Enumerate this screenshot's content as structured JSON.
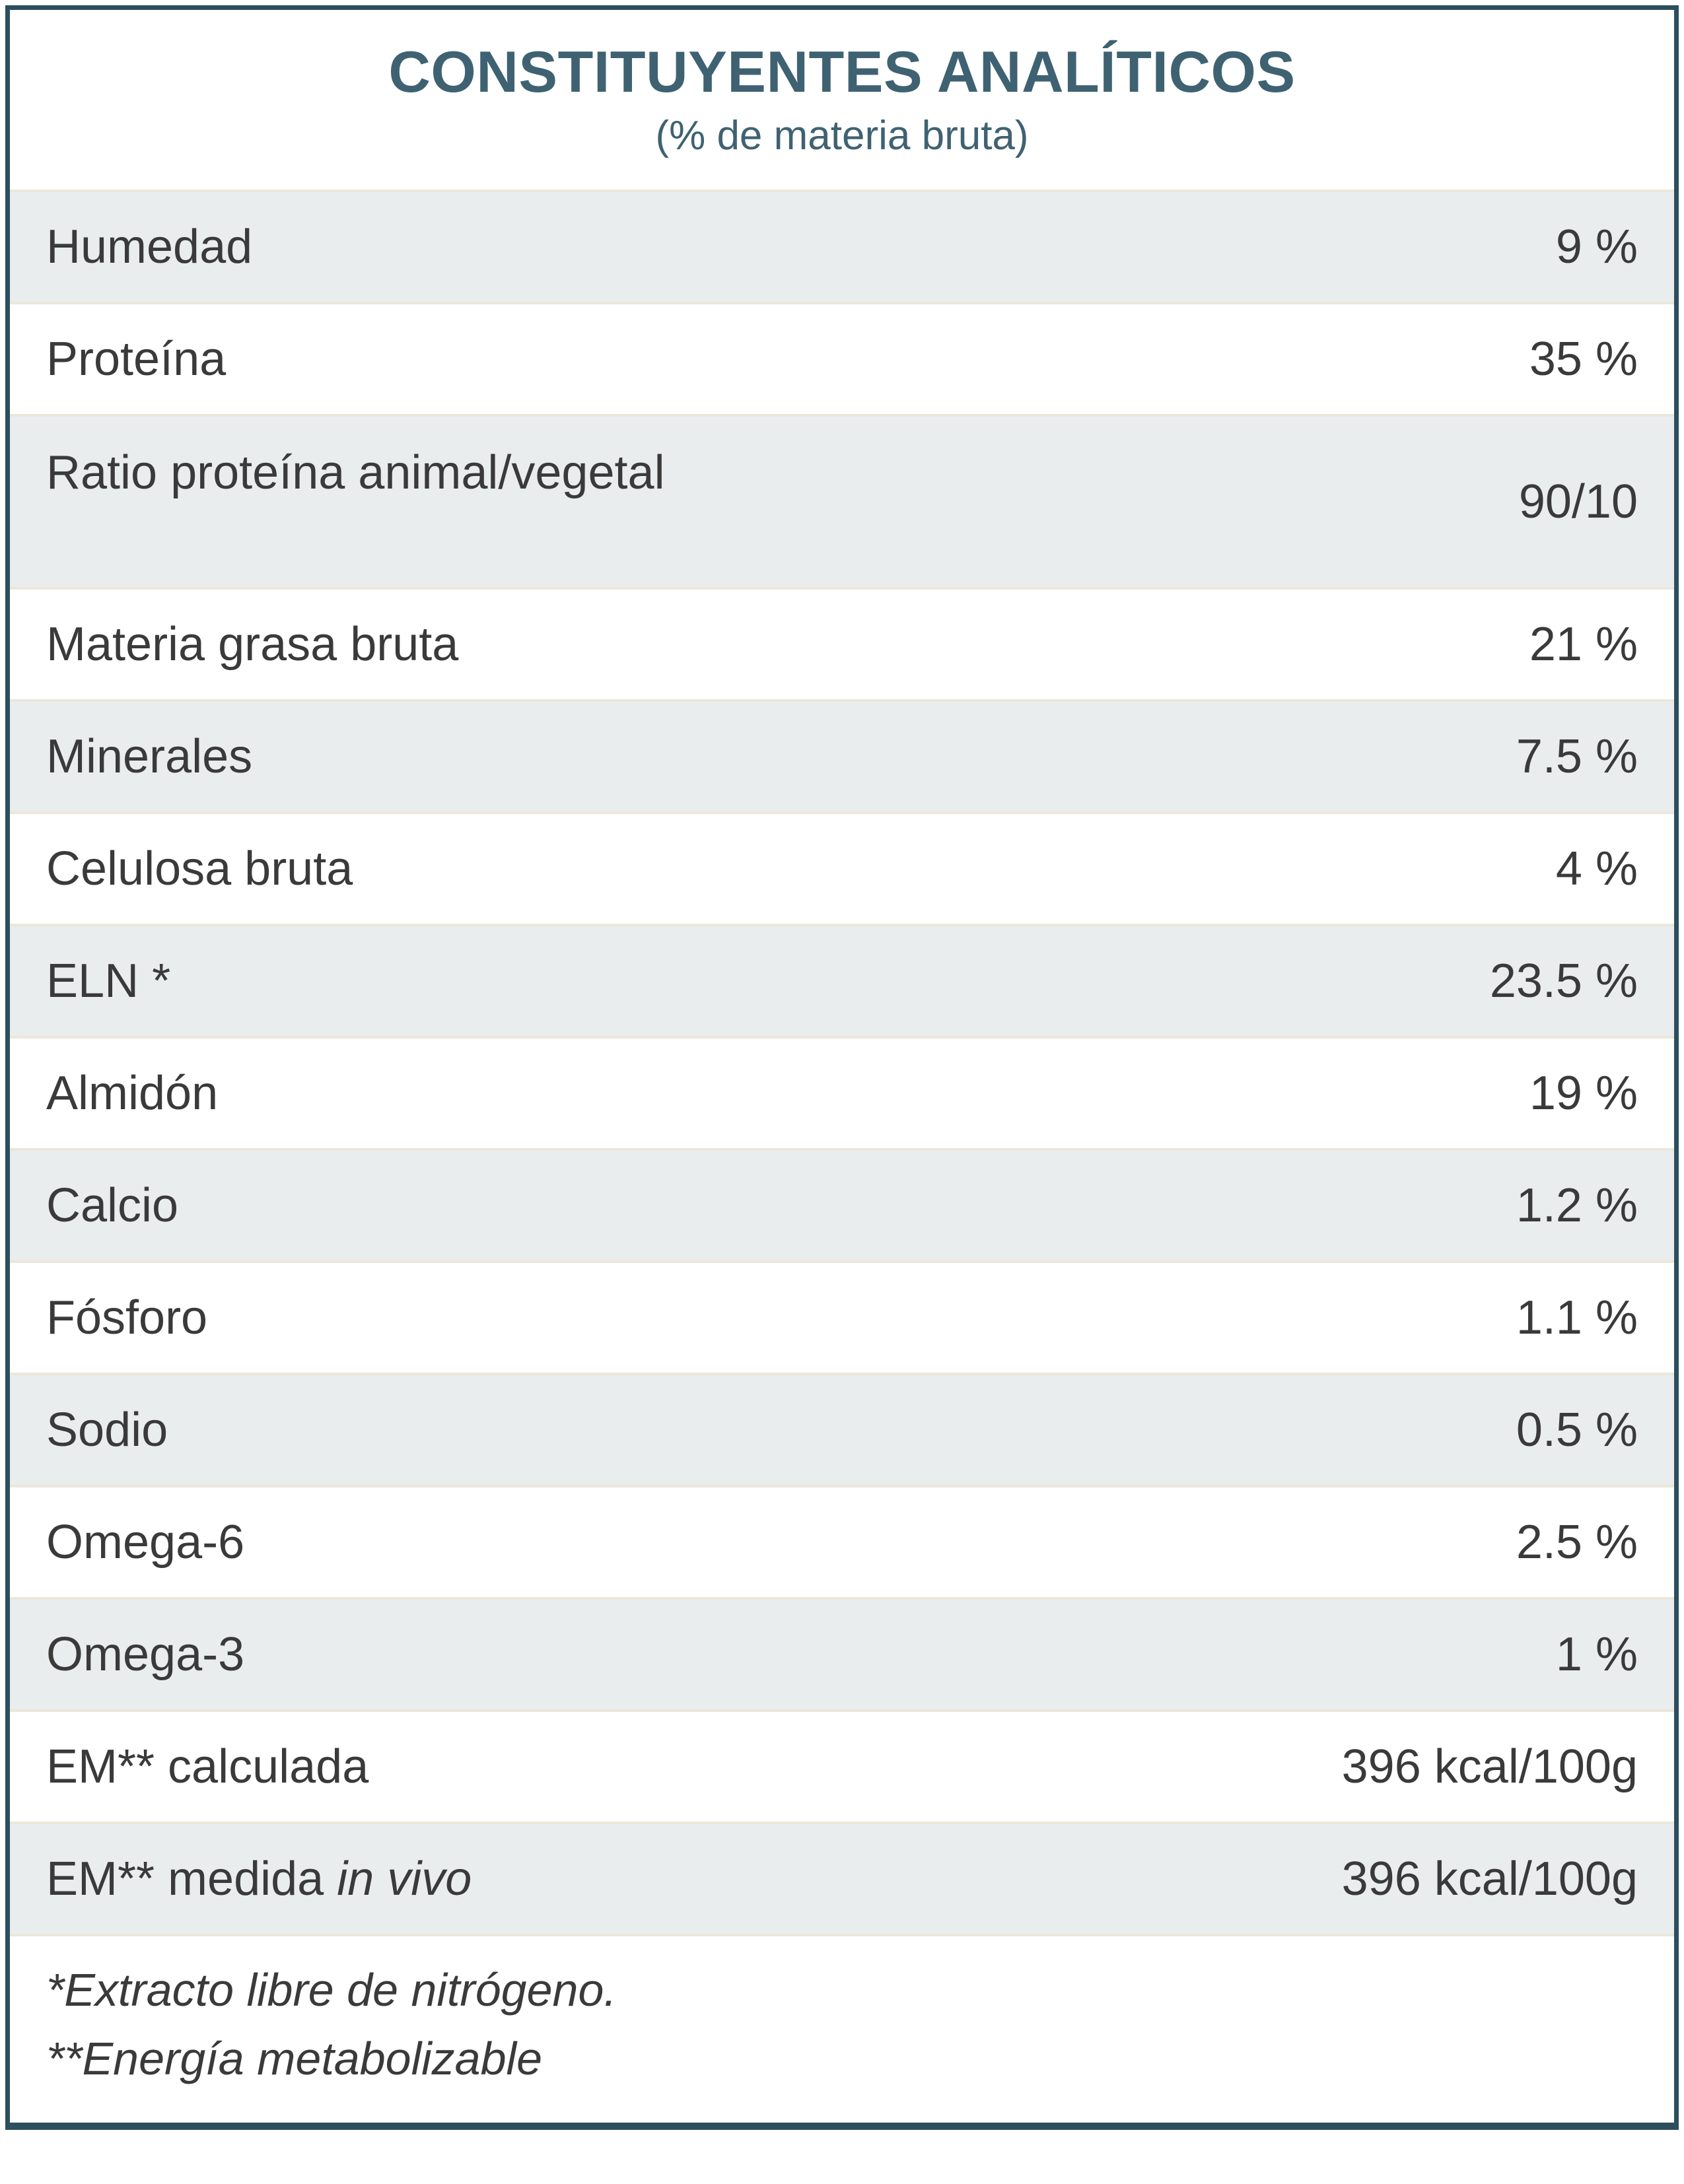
{
  "table": {
    "title": "CONSTITUYENTES ANALÍTICOS",
    "subtitle": "(% de materia bruta)",
    "rows": [
      {
        "label": "Humedad",
        "value": "9 %"
      },
      {
        "label": "Proteína",
        "value": "35 %"
      },
      {
        "label": "Ratio proteína animal/vegetal",
        "value": "90/10",
        "tall": true
      },
      {
        "label": "Materia grasa bruta",
        "value": "21 %"
      },
      {
        "label": "Minerales",
        "value": "7.5 %"
      },
      {
        "label": "Celulosa bruta",
        "value": "4 %"
      },
      {
        "label": "ELN *",
        "value": "23.5 %"
      },
      {
        "label": "Almidón",
        "value": "19 %"
      },
      {
        "label": "Calcio",
        "value": "1.2 %"
      },
      {
        "label": "Fósforo",
        "value": "1.1 %"
      },
      {
        "label": "Sodio",
        "value": "0.5 %"
      },
      {
        "label": "Omega-6",
        "value": "2.5 %"
      },
      {
        "label": "Omega-3",
        "value": "1 %"
      },
      {
        "label": "EM** calculada",
        "value": "396 kcal/100g"
      },
      {
        "label": "EM** medida in vivo",
        "italic_part": "in vivo",
        "value": "396 kcal/100g"
      }
    ],
    "footnotes": [
      "*Extracto libre de nitrógeno.",
      "**Energía metabolizable"
    ],
    "colors": {
      "border_teal": "#2b4f5e",
      "title_teal": "#3f6272",
      "row_shade": "#e9edee",
      "separator": "#ebe7da",
      "text": "#3a3a3a"
    }
  }
}
